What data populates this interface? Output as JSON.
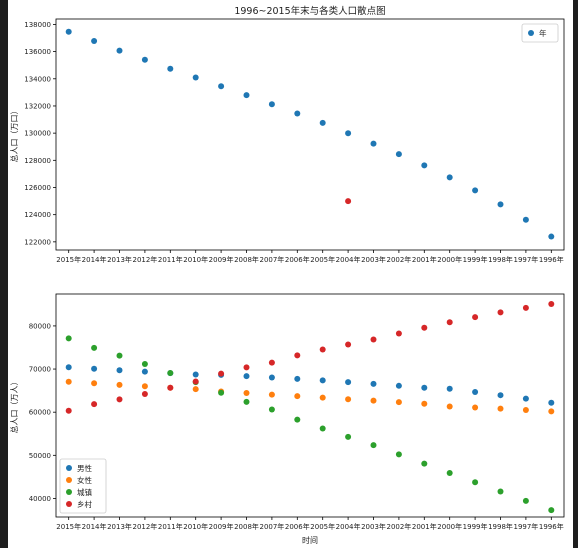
{
  "chart_data": [
    {
      "type": "scatter",
      "title": "1996~2015年末与各类人口散点图",
      "ylabel": "总人口（万口）",
      "xlabel": "",
      "categories": [
        "2015年",
        "2014年",
        "2013年",
        "2012年",
        "2011年",
        "2010年",
        "2009年",
        "2008年",
        "2007年",
        "2006年",
        "2005年",
        "2004年",
        "2003年",
        "2002年",
        "2001年",
        "2000年",
        "1999年",
        "1998年",
        "1997年",
        "1996年"
      ],
      "yticks": [
        122000,
        124000,
        126000,
        128000,
        130000,
        132000,
        134000,
        136000,
        138000
      ],
      "ylim": [
        121400,
        138400
      ],
      "grid": false,
      "legend_position": "upper right",
      "series": [
        {
          "name": "年",
          "color": "#1f77b4",
          "values": [
            137462,
            136782,
            136072,
            135404,
            134735,
            134091,
            133450,
            132802,
            132129,
            131448,
            130756,
            129988,
            129227,
            128453,
            127627,
            126743,
            125786,
            124761,
            123626,
            122389
          ]
        }
      ],
      "extra_points": [
        {
          "category": "2004年",
          "value": 125000,
          "color": "#d62728"
        }
      ]
    },
    {
      "type": "scatter",
      "title": "",
      "xlabel": "时间",
      "ylabel": "总人口（万人）",
      "categories": [
        "2015年",
        "2014年",
        "2013年",
        "2012年",
        "2011年",
        "2010年",
        "2009年",
        "2008年",
        "2007年",
        "2006年",
        "2005年",
        "2004年",
        "2003年",
        "2002年",
        "2001年",
        "2000年",
        "1999年",
        "1998年",
        "1997年",
        "1996年"
      ],
      "yticks": [
        40000,
        50000,
        60000,
        70000,
        80000
      ],
      "ylim": [
        35700,
        87400
      ],
      "grid": false,
      "legend_position": "lower left",
      "series": [
        {
          "name": "男性",
          "color": "#1f77b4",
          "values": [
            70414,
            70079,
            69728,
            69395,
            69068,
            68748,
            68647,
            68357,
            68048,
            67728,
            67375,
            66976,
            66556,
            66115,
            65672,
            65437,
            64692,
            63940,
            63131,
            62200
          ]
        },
        {
          "name": "女性",
          "color": "#ff7f0e",
          "values": [
            67048,
            66703,
            66344,
            66009,
            65667,
            65343,
            64803,
            64445,
            64081,
            63720,
            63381,
            63012,
            62671,
            62338,
            61955,
            61306,
            61094,
            60821,
            60495,
            60189
          ]
        },
        {
          "name": "城镇",
          "color": "#2ca02c",
          "values": [
            77116,
            74916,
            73111,
            71182,
            69079,
            66978,
            64512,
            62403,
            60633,
            58288,
            56212,
            54283,
            52376,
            50212,
            48064,
            45906,
            43748,
            41608,
            39449,
            37304
          ]
        },
        {
          "name": "乡村",
          "color": "#d62728",
          "values": [
            60346,
            61866,
            62961,
            64222,
            65656,
            67113,
            68938,
            70399,
            71496,
            73160,
            74544,
            75705,
            76851,
            78241,
            79563,
            80837,
            82038,
            83153,
            84177,
            85085
          ]
        }
      ]
    }
  ]
}
